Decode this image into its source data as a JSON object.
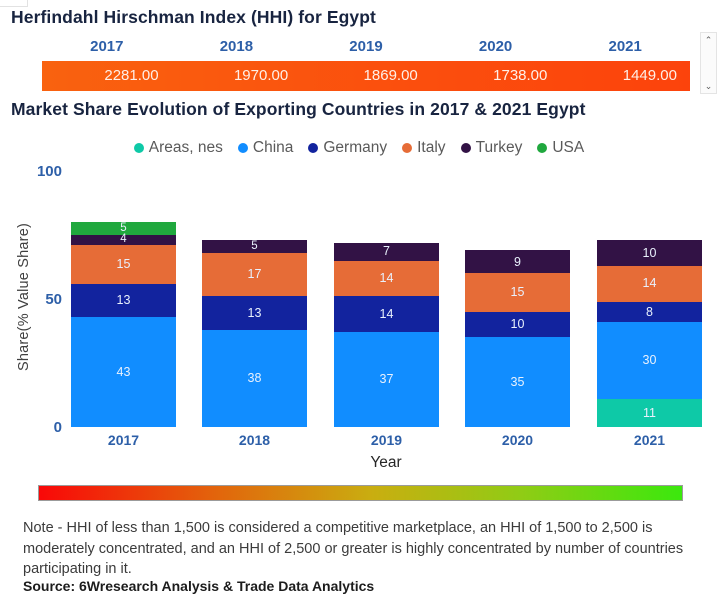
{
  "hhi": {
    "title": "Herfindahl Hirschman Index (HHI) for Egypt",
    "years": [
      "2017",
      "2018",
      "2019",
      "2020",
      "2021"
    ],
    "values": [
      "2281.00",
      "1970.00",
      "1869.00",
      "1738.00",
      "1449.00"
    ],
    "bar_color_start": "#f9620f",
    "bar_color_end": "#fc430c"
  },
  "scrollbar": {
    "up_icon": "⌃",
    "down_icon": "⌄"
  },
  "market_share": {
    "title": "Market Share Evolution of Exporting Countries in 2017 & 2021 Egypt"
  },
  "chart_data": {
    "type": "bar",
    "stacked": true,
    "title": "Market Share Evolution of Exporting Countries in 2017 & 2021 Egypt",
    "categories": [
      "2017",
      "2018",
      "2019",
      "2020",
      "2021"
    ],
    "series": [
      {
        "name": "Areas, nes",
        "color": "#0ec9a7",
        "values": [
          0,
          0,
          0,
          0,
          11
        ]
      },
      {
        "name": "China",
        "color": "#118dff",
        "values": [
          43,
          38,
          37,
          35,
          30
        ]
      },
      {
        "name": "Germany",
        "color": "#12239e",
        "values": [
          13,
          13,
          14,
          10,
          8
        ]
      },
      {
        "name": "Italy",
        "color": "#e66c37",
        "values": [
          15,
          17,
          14,
          15,
          14
        ]
      },
      {
        "name": "Turkey",
        "color": "#321245",
        "values": [
          4,
          5,
          7,
          9,
          10
        ]
      },
      {
        "name": "USA",
        "color": "#20a83e",
        "values": [
          5,
          0,
          0,
          0,
          0
        ]
      }
    ],
    "xlabel": "Year",
    "ylabel": "Share(% Value Share)",
    "ylim": [
      0,
      100
    ],
    "yticks": [
      100,
      50,
      0
    ],
    "legend_position": "top",
    "grid": false
  },
  "axis_color": "#2d5fa8",
  "gradient_scale_colors": [
    "#f90808",
    "#e2660c",
    "#c9ae10",
    "#90cc15",
    "#3be80d"
  ],
  "note": "Note - HHI of less than 1,500 is considered a competitive marketplace, an HHI of 1,500 to 2,500 is moderately concentrated, and an HHI of 2,500 or greater is highly concentrated by number of countries participating in it.",
  "source": "Source: 6Wresearch Analysis & Trade Data Analytics"
}
